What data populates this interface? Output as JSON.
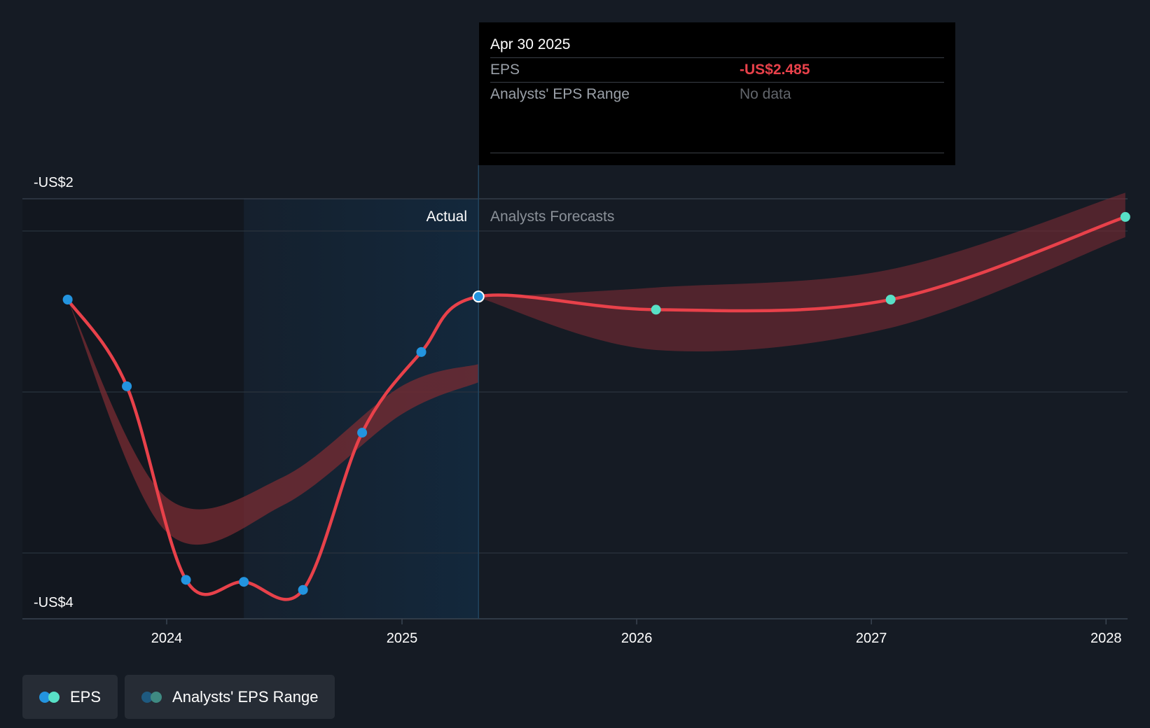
{
  "tooltip": {
    "date": "Apr 30 2025",
    "eps_label": "EPS",
    "eps_value": "-US$2.485",
    "range_label": "Analysts' EPS Range",
    "range_value": "No data"
  },
  "legend": {
    "eps_label": "EPS",
    "range_label": "Analysts' EPS Range"
  },
  "colors": {
    "background": "#151b24",
    "eps_line": "#e8414a",
    "actual_point": "#2394df",
    "forecast_point": "#58e0c6",
    "range_band": "#7a2c33",
    "actual_region": "#13283c"
  },
  "chart_data": {
    "type": "line",
    "title": "",
    "xlabel": "",
    "ylabel": "",
    "ylim": [
      -4.0,
      -2.0
    ],
    "y_tick_labels": [
      "-US$2",
      "-US$4"
    ],
    "x_ticks": [
      {
        "date": "2024-01-01",
        "label": "2024"
      },
      {
        "date": "2025-01-01",
        "label": "2025"
      },
      {
        "date": "2026-01-01",
        "label": "2026"
      },
      {
        "date": "2027-01-01",
        "label": "2027"
      },
      {
        "date": "2028-01-01",
        "label": "2028"
      }
    ],
    "region_labels": {
      "actual": "Actual",
      "forecast": "Analysts Forecasts"
    },
    "actual_region_start": "2024-04-30",
    "divider_date": "2025-04-30",
    "series": [
      {
        "name": "EPS",
        "points": [
          {
            "x": "2023-07-31",
            "y": -2.5,
            "kind": "actual"
          },
          {
            "x": "2023-10-31",
            "y": -2.93,
            "kind": "actual"
          },
          {
            "x": "2024-01-31",
            "y": -3.89,
            "kind": "actual"
          },
          {
            "x": "2024-04-30",
            "y": -3.9,
            "kind": "actual"
          },
          {
            "x": "2024-07-31",
            "y": -3.94,
            "kind": "actual"
          },
          {
            "x": "2024-10-31",
            "y": -3.16,
            "kind": "actual"
          },
          {
            "x": "2025-01-31",
            "y": -2.76,
            "kind": "actual"
          },
          {
            "x": "2025-04-30",
            "y": -2.485,
            "kind": "actual"
          },
          {
            "x": "2026-01-31",
            "y": -2.55,
            "kind": "forecast"
          },
          {
            "x": "2027-01-31",
            "y": -2.5,
            "kind": "forecast"
          },
          {
            "x": "2028-01-31",
            "y": -2.09,
            "kind": "forecast"
          }
        ]
      }
    ],
    "range_band": [
      {
        "x": "2023-07-31",
        "low": -2.5,
        "high": -2.5
      },
      {
        "x": "2023-12-31",
        "low": -3.65,
        "high": -3.48
      },
      {
        "x": "2024-06-30",
        "low": -3.52,
        "high": -3.38
      },
      {
        "x": "2024-12-31",
        "low": -3.07,
        "high": -2.93
      },
      {
        "x": "2025-04-30",
        "low": -2.91,
        "high": -2.82
      },
      {
        "x": "2025-04-30",
        "low": -2.49,
        "high": -2.49
      },
      {
        "x": "2026-01-31",
        "low": -2.75,
        "high": -2.44
      },
      {
        "x": "2027-01-31",
        "low": -2.64,
        "high": -2.35
      },
      {
        "x": "2028-01-31",
        "low": -2.19,
        "high": -1.97
      }
    ]
  }
}
